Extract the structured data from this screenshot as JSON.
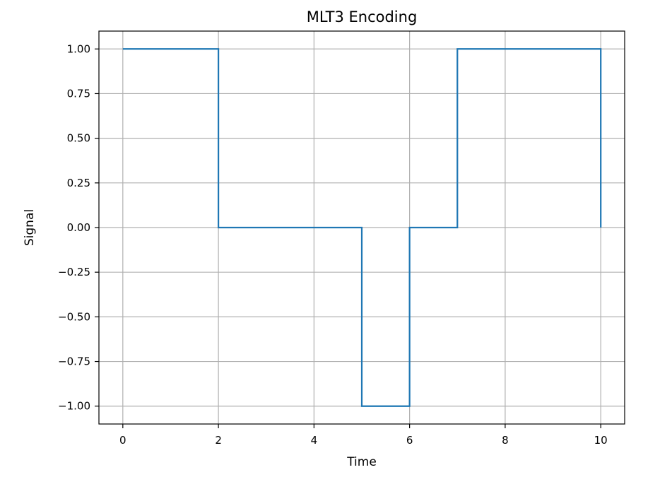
{
  "chart_data": {
    "type": "line",
    "step": "post",
    "title": "MLT3 Encoding",
    "xlabel": "Time",
    "ylabel": "Signal",
    "xlim": [
      -0.5,
      10.5
    ],
    "ylim": [
      -1.1,
      1.1
    ],
    "xticks": [
      0,
      2,
      4,
      6,
      8,
      10
    ],
    "yticks": [
      1.0,
      0.75,
      0.5,
      0.25,
      0.0,
      -0.25,
      -0.5,
      -0.75,
      -1.0
    ],
    "xtick_labels": [
      "0",
      "2",
      "4",
      "6",
      "8",
      "10"
    ],
    "ytick_labels": [
      "1.00",
      "0.75",
      "0.50",
      "0.25",
      "0.00",
      "−0.25",
      "−0.50",
      "−0.75",
      "−1.00"
    ],
    "grid": true,
    "color": "#1f77b4",
    "series": [
      {
        "x": [
          0,
          1,
          2,
          3,
          4,
          5,
          6,
          7,
          8,
          9,
          10
        ],
        "y": [
          1,
          1,
          0,
          0,
          0,
          -1,
          0,
          1,
          1,
          1,
          0
        ]
      }
    ]
  }
}
